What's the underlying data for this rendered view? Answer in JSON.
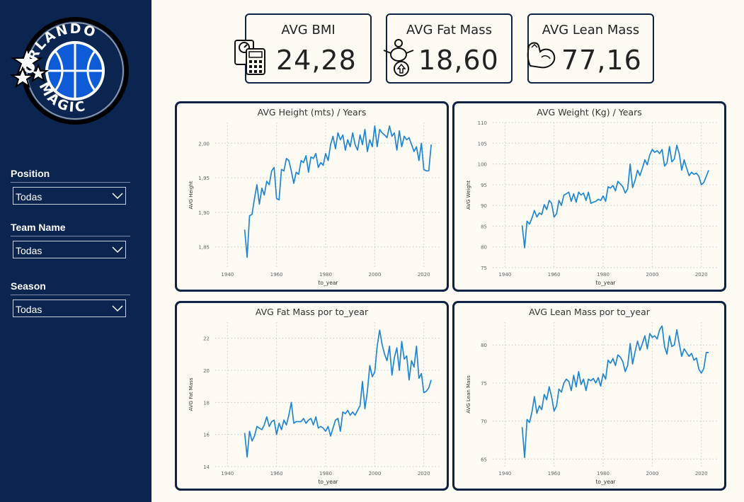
{
  "sidebar": {
    "logo": {
      "top_text": "ORLANDO",
      "bottom_text": "MAGIC"
    },
    "slicers": [
      {
        "title": "Position",
        "value": "Todas"
      },
      {
        "title": "Team Name",
        "value": "Todas"
      },
      {
        "title": "Season",
        "value": "Todas"
      }
    ]
  },
  "kpis": [
    {
      "title": "AVG BMI",
      "value": "24,28",
      "icon": "scale-bmi-icon"
    },
    {
      "title": "AVG Fat Mass",
      "value": "18,60",
      "icon": "fat-mass-icon"
    },
    {
      "title": "AVG Lean Mass",
      "value": "77,16",
      "icon": "muscle-arm-icon"
    }
  ],
  "colors": {
    "sidebar": "#0b2550",
    "card_border": "#0d2244",
    "line": "#1f86d6",
    "background": "#fdfbf4"
  },
  "chart_data": [
    {
      "type": "line",
      "title": "AVG Height (mts) / Years",
      "xlabel": "to_year",
      "ylabel": "AVG Height",
      "xlim": [
        1935,
        2027
      ],
      "ylim": [
        1.82,
        2.03
      ],
      "xticks": [
        1940,
        1960,
        1980,
        2000,
        2020
      ],
      "xtick_labels": [
        "1940",
        "1960",
        "1980",
        "2000",
        "2020"
      ],
      "yticks": [
        1.85,
        1.9,
        1.95,
        2.0
      ],
      "ytick_labels": [
        "1,85",
        "1,90",
        "1,95",
        "2,00"
      ],
      "grid": true,
      "x": [
        1947,
        1948,
        1949,
        1950,
        1951,
        1952,
        1953,
        1954,
        1955,
        1956,
        1957,
        1958,
        1959,
        1960,
        1961,
        1962,
        1963,
        1964,
        1965,
        1966,
        1967,
        1968,
        1969,
        1970,
        1971,
        1972,
        1973,
        1974,
        1975,
        1976,
        1977,
        1978,
        1979,
        1980,
        1981,
        1982,
        1983,
        1984,
        1985,
        1986,
        1987,
        1988,
        1989,
        1990,
        1991,
        1992,
        1993,
        1994,
        1995,
        1996,
        1997,
        1998,
        1999,
        2000,
        2001,
        2002,
        2003,
        2004,
        2005,
        2006,
        2007,
        2008,
        2009,
        2010,
        2011,
        2012,
        2013,
        2014,
        2015,
        2016,
        2017,
        2018,
        2019,
        2020,
        2021,
        2022,
        2023
      ],
      "values": [
        1.875,
        1.835,
        1.895,
        1.897,
        1.92,
        1.94,
        1.912,
        1.935,
        1.925,
        1.945,
        1.94,
        1.96,
        1.965,
        1.92,
        1.918,
        1.962,
        1.96,
        1.978,
        1.975,
        1.96,
        1.942,
        1.958,
        1.955,
        1.975,
        1.972,
        1.982,
        1.958,
        1.98,
        1.978,
        1.985,
        1.965,
        1.972,
        1.968,
        1.985,
        1.975,
        1.998,
        2.01,
        1.992,
        2.015,
        2.005,
        2.012,
        1.99,
        2.005,
        1.995,
        2.015,
        1.998,
        1.99,
        2.012,
        1.998,
        2.02,
        1.988,
        2.005,
        1.995,
        2.025,
        1.995,
        2.02,
        2.015,
        2.012,
        2.008,
        2.025,
        2.01,
        2.015,
        1.99,
        2.018,
        1.995,
        2.01,
        2.005,
        2.008,
        1.998,
        1.988,
        1.995,
        1.975,
        2.0,
        1.962,
        1.96,
        1.96,
        1.998
      ]
    },
    {
      "type": "line",
      "title": "AVG Weight (Kg) / Years",
      "xlabel": "to_year",
      "ylabel": "AVG Weight",
      "xlim": [
        1935,
        2027
      ],
      "ylim": [
        75,
        110
      ],
      "xticks": [
        1940,
        1960,
        1980,
        2000,
        2020
      ],
      "xtick_labels": [
        "1940",
        "1960",
        "1980",
        "2000",
        "2020"
      ],
      "yticks": [
        75,
        80,
        85,
        90,
        95,
        100,
        105,
        110
      ],
      "ytick_labels": [
        "75",
        "80",
        "85",
        "90",
        "95",
        "100",
        "105",
        "110"
      ],
      "grid": true,
      "x": [
        1947,
        1948,
        1949,
        1950,
        1951,
        1952,
        1953,
        1954,
        1955,
        1956,
        1957,
        1958,
        1959,
        1960,
        1961,
        1962,
        1963,
        1964,
        1965,
        1966,
        1967,
        1968,
        1969,
        1970,
        1971,
        1972,
        1973,
        1974,
        1975,
        1976,
        1977,
        1978,
        1979,
        1980,
        1981,
        1982,
        1983,
        1984,
        1985,
        1986,
        1987,
        1988,
        1989,
        1990,
        1991,
        1992,
        1993,
        1994,
        1995,
        1996,
        1997,
        1998,
        1999,
        2000,
        2001,
        2002,
        2003,
        2004,
        2005,
        2006,
        2007,
        2008,
        2009,
        2010,
        2011,
        2012,
        2013,
        2014,
        2015,
        2016,
        2017,
        2018,
        2019,
        2020,
        2021,
        2022,
        2023
      ],
      "values": [
        85.2,
        79.8,
        86.2,
        85.5,
        87.0,
        88.8,
        87.2,
        88.2,
        87.8,
        90.2,
        89.0,
        91.2,
        90.5,
        87.2,
        88.0,
        91.2,
        90.0,
        92.5,
        92.8,
        93.2,
        91.0,
        92.8,
        90.8,
        93.2,
        92.5,
        93.0,
        91.2,
        93.2,
        90.5,
        90.8,
        91.0,
        91.5,
        91.2,
        92.3,
        91.0,
        94.5,
        94.2,
        94.8,
        93.5,
        95.8,
        95.2,
        94.5,
        93.0,
        94.0,
        100.0,
        94.3,
        96.0,
        98.5,
        97.2,
        99.0,
        101.0,
        99.8,
        102.2,
        103.5,
        102.8,
        103.2,
        102.5,
        103.5,
        99.5,
        100.2,
        104.2,
        100.5,
        101.2,
        104.5,
        102.5,
        98.5,
        101.0,
        99.0,
        97.2,
        98.0,
        97.5,
        97.8,
        97.0,
        95.0,
        95.5,
        97.0,
        98.5
      ]
    },
    {
      "type": "line",
      "title": "AVG Fat Mass por to_year",
      "xlabel": "to_year",
      "ylabel": "AVG Fat Mass",
      "xlim": [
        1935,
        2027
      ],
      "ylim": [
        14,
        23
      ],
      "xticks": [
        1940,
        1960,
        1980,
        2000,
        2020
      ],
      "xtick_labels": [
        "1940",
        "1960",
        "1980",
        "2000",
        "2020"
      ],
      "yticks": [
        14,
        16,
        18,
        20,
        22
      ],
      "ytick_labels": [
        "14",
        "16",
        "18",
        "20",
        "22"
      ],
      "grid": true,
      "x": [
        1947,
        1948,
        1949,
        1950,
        1951,
        1952,
        1953,
        1954,
        1955,
        1956,
        1957,
        1958,
        1959,
        1960,
        1961,
        1962,
        1963,
        1964,
        1965,
        1966,
        1967,
        1968,
        1969,
        1970,
        1971,
        1972,
        1973,
        1974,
        1975,
        1976,
        1977,
        1978,
        1979,
        1980,
        1981,
        1982,
        1983,
        1984,
        1985,
        1986,
        1987,
        1988,
        1989,
        1990,
        1991,
        1992,
        1993,
        1994,
        1995,
        1996,
        1997,
        1998,
        1999,
        2000,
        2001,
        2002,
        2003,
        2004,
        2005,
        2006,
        2007,
        2008,
        2009,
        2010,
        2011,
        2012,
        2013,
        2014,
        2015,
        2016,
        2017,
        2018,
        2019,
        2020,
        2021,
        2022,
        2023
      ],
      "values": [
        16.1,
        14.6,
        16.2,
        15.6,
        15.9,
        16.5,
        16.4,
        16.3,
        16.6,
        17.1,
        16.5,
        16.8,
        16.9,
        16.0,
        16.7,
        16.3,
        16.9,
        16.6,
        17.2,
        18.0,
        16.7,
        16.8,
        16.8,
        16.8,
        17.0,
        16.7,
        16.9,
        17.0,
        16.6,
        17.1,
        16.4,
        16.5,
        16.4,
        16.2,
        16.5,
        15.9,
        16.4,
        16.9,
        17.0,
        16.2,
        17.4,
        17.3,
        17.5,
        17.2,
        17.4,
        17.2,
        17.5,
        17.8,
        19.3,
        17.6,
        18.7,
        20.3,
        19.6,
        19.9,
        21.5,
        22.5,
        21.6,
        21.0,
        20.6,
        21.5,
        19.7,
        20.8,
        21.4,
        20.0,
        21.8,
        20.7,
        20.9,
        19.4,
        20.6,
        20.2,
        21.5,
        19.5,
        19.8,
        18.6,
        18.7,
        18.9,
        19.4
      ]
    },
    {
      "type": "line",
      "title": "AVG Lean Mass por to_year",
      "xlabel": "to_year",
      "ylabel": "AVG Lean Mass",
      "xlim": [
        1935,
        2027
      ],
      "ylim": [
        64,
        83
      ],
      "xticks": [
        1940,
        1960,
        1980,
        2000,
        2020
      ],
      "xtick_labels": [
        "1940",
        "1960",
        "1980",
        "2000",
        "2020"
      ],
      "yticks": [
        65,
        70,
        75,
        80
      ],
      "ytick_labels": [
        "65",
        "70",
        "75",
        "80"
      ],
      "grid": true,
      "x": [
        1947,
        1948,
        1949,
        1950,
        1951,
        1952,
        1953,
        1954,
        1955,
        1956,
        1957,
        1958,
        1959,
        1960,
        1961,
        1962,
        1963,
        1964,
        1965,
        1966,
        1967,
        1968,
        1969,
        1970,
        1971,
        1972,
        1973,
        1974,
        1975,
        1976,
        1977,
        1978,
        1979,
        1980,
        1981,
        1982,
        1983,
        1984,
        1985,
        1986,
        1987,
        1988,
        1989,
        1990,
        1991,
        1992,
        1993,
        1994,
        1995,
        1996,
        1997,
        1998,
        1999,
        2000,
        2001,
        2002,
        2003,
        2004,
        2005,
        2006,
        2007,
        2008,
        2009,
        2010,
        2011,
        2012,
        2013,
        2014,
        2015,
        2016,
        2017,
        2018,
        2019,
        2020,
        2021,
        2022,
        2023
      ],
      "values": [
        69.2,
        65.2,
        70.2,
        69.8,
        71.2,
        73.2,
        71.0,
        72.0,
        71.5,
        73.5,
        72.8,
        74.5,
        73.2,
        71.3,
        72.0,
        74.2,
        73.8,
        75.0,
        75.5,
        75.2,
        74.0,
        76.0,
        74.5,
        76.5,
        74.8,
        75.5,
        74.0,
        75.5,
        75.3,
        75.6,
        75.0,
        75.7,
        74.6,
        76.2,
        75.5,
        78.0,
        77.6,
        78.2,
        77.3,
        78.7,
        78.4,
        77.8,
        76.5,
        77.3,
        80.2,
        77.5,
        79.1,
        80.5,
        79.3,
        80.2,
        81.2,
        79.5,
        81.5,
        81.0,
        81.2,
        80.8,
        82.0,
        82.5,
        79.8,
        78.8,
        81.2,
        79.8,
        80.0,
        82.0,
        80.2,
        78.5,
        79.5,
        79.0,
        78.5,
        78.9,
        78.0,
        78.3,
        76.8,
        76.3,
        76.9,
        79.0,
        79.0
      ]
    }
  ]
}
